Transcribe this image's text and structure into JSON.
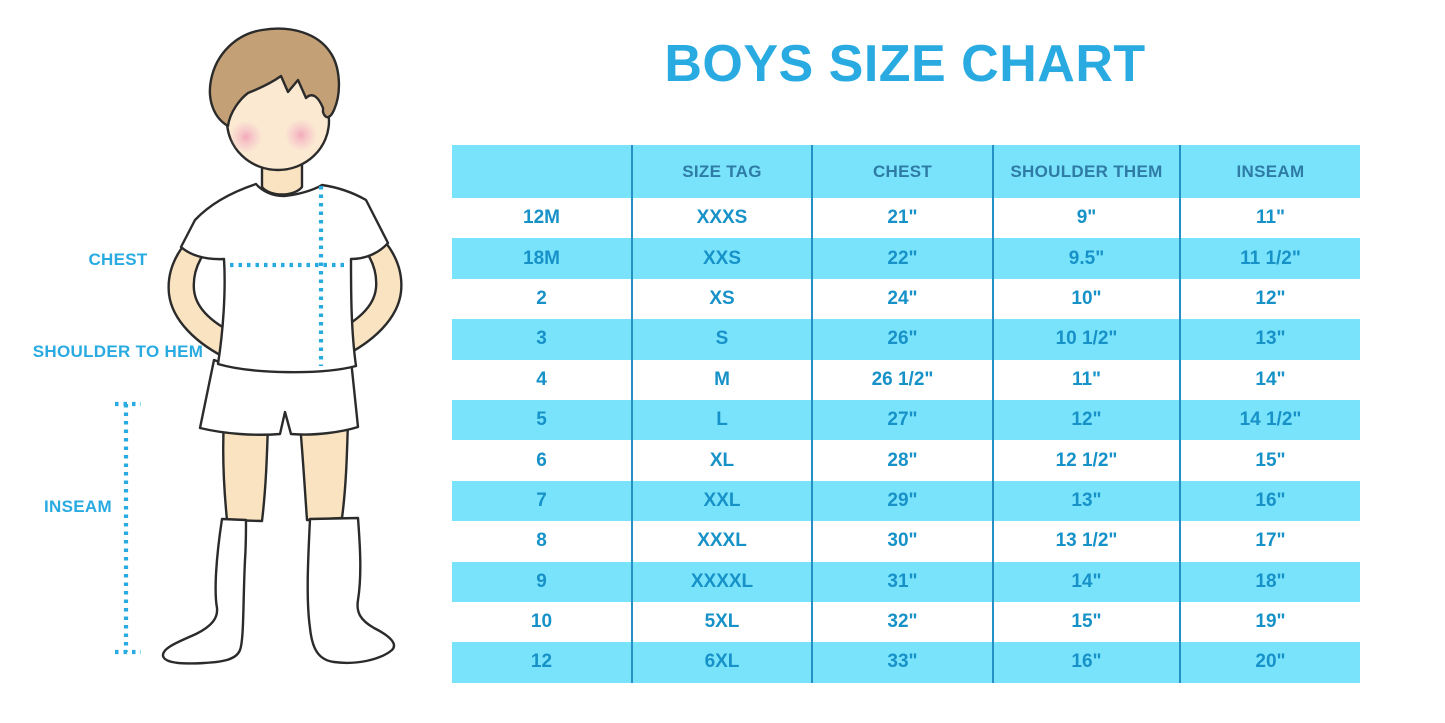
{
  "title": "BOYS SIZE CHART",
  "colors": {
    "accent": "#29ABE2",
    "table_fill": "#79E3FB",
    "header_text": "#2E7BA6",
    "cell_text": "#1792C8",
    "divider": "#2590C4",
    "skin": "#F9E3C0",
    "face": "#FBE9D2",
    "hair": "#C3A075",
    "outline": "#2B2B2B",
    "cheek": "#F2A3B8",
    "garment": "#FFFFFF"
  },
  "figure": {
    "description": "cartoon boy in white t-shirt, shorts and knee socks with measurement guide lines",
    "labels": [
      {
        "id": "chest",
        "text": "CHEST"
      },
      {
        "id": "shoulder-to-hem",
        "text": "SHOULDER TO HEM"
      },
      {
        "id": "inseam",
        "text": "INSEAM"
      }
    ]
  },
  "chart_data": {
    "type": "table",
    "title": "BOYS SIZE CHART",
    "columns": [
      "",
      "SIZE TAG",
      "CHEST",
      "SHOULDER THEM",
      "INSEAM"
    ],
    "rows": [
      [
        "12M",
        "XXXS",
        "21\"",
        "9\"",
        "11\""
      ],
      [
        "18M",
        "XXS",
        "22\"",
        "9.5\"",
        "11 1/2\""
      ],
      [
        "2",
        "XS",
        "24\"",
        "10\"",
        "12\""
      ],
      [
        "3",
        "S",
        "26\"",
        "10 1/2\"",
        "13\""
      ],
      [
        "4",
        "M",
        "26 1/2\"",
        "11\"",
        "14\""
      ],
      [
        "5",
        "L",
        "27\"",
        "12\"",
        "14 1/2\""
      ],
      [
        "6",
        "XL",
        "28\"",
        "12 1/2\"",
        "15\""
      ],
      [
        "7",
        "XXL",
        "29\"",
        "13\"",
        "16\""
      ],
      [
        "8",
        "XXXL",
        "30\"",
        "13 1/2\"",
        "17\""
      ],
      [
        "9",
        "XXXXL",
        "31\"",
        "14\"",
        "18\""
      ],
      [
        "10",
        "5XL",
        "32\"",
        "15\"",
        "19\""
      ],
      [
        "12",
        "6XL",
        "33\"",
        "16\"",
        "20\""
      ]
    ],
    "layout": {
      "striped_rows": true,
      "stripe_color": "#79E3FB",
      "first_data_row_background": "white"
    }
  }
}
